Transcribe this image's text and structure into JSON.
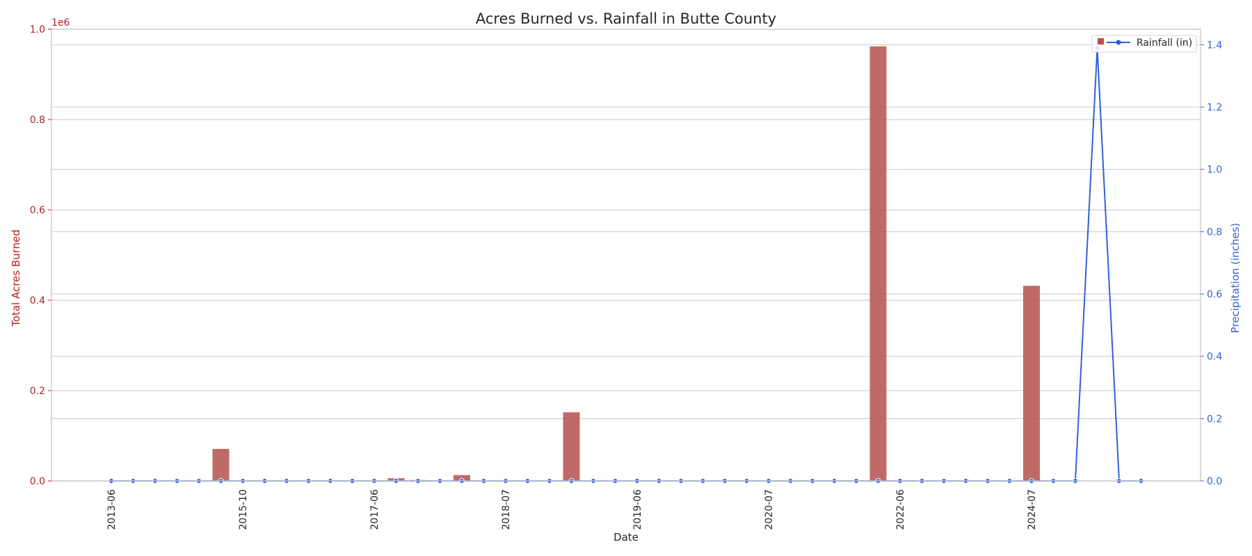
{
  "chart_data": {
    "type": "bar",
    "title": "Acres Burned vs. Rainfall in Butte County",
    "xlabel": "Date",
    "ylabel_left": "Total Acres Burned",
    "ylabel_right": "Precipitation (inches)",
    "offset_text_left": "1e6",
    "colors": {
      "bars": "#b5504c",
      "line": "#2f5fd8",
      "left_axis": "#b22222",
      "right_axis": "#3461d6",
      "grid": "#d0d0d0"
    },
    "ylim_left": [
      0,
      1.0
    ],
    "ylim_right": [
      0,
      1.45
    ],
    "left_ticks": [
      "0.0",
      "0.2",
      "0.4",
      "0.6",
      "0.8",
      "1.0"
    ],
    "right_ticks": [
      "0.0",
      "0.2",
      "0.4",
      "0.6",
      "0.8",
      "1.0",
      "1.2",
      "1.4"
    ],
    "x_tick_labels": [
      {
        "index": 0,
        "label": "2013-06"
      },
      {
        "index": 6,
        "label": "2015-10"
      },
      {
        "index": 12,
        "label": "2017-06"
      },
      {
        "index": 18,
        "label": "2018-07"
      },
      {
        "index": 24,
        "label": "2019-06"
      },
      {
        "index": 30,
        "label": "2020-07"
      },
      {
        "index": 36,
        "label": "2022-06"
      },
      {
        "index": 42,
        "label": "2024-07"
      }
    ],
    "n_points": 48,
    "acres_burned_millions": [
      0,
      0,
      0,
      0,
      0,
      0.071,
      0,
      0,
      0,
      0,
      0,
      0,
      0,
      0.006,
      0.002,
      0,
      0.013,
      0,
      0,
      0,
      0,
      0.152,
      0,
      0,
      0,
      0,
      0,
      0,
      0,
      0,
      0,
      0,
      0,
      0,
      0,
      0.962,
      0,
      0,
      0,
      0,
      0,
      0,
      0.432,
      0,
      0,
      0,
      0,
      0
    ],
    "rainfall_in": [
      0,
      0,
      0,
      0,
      0,
      0,
      0,
      0,
      0,
      0,
      0,
      0,
      0,
      0,
      0,
      0,
      0,
      0,
      0,
      0,
      0,
      0,
      0,
      0,
      0,
      0,
      0,
      0,
      0,
      0,
      0,
      0,
      0,
      0,
      0,
      0,
      0,
      0,
      0,
      0,
      0,
      0,
      0,
      0,
      0,
      1.39,
      0,
      0
    ],
    "legend": {
      "placement": "top-right",
      "entries": [
        "Rainfall (in)"
      ]
    }
  }
}
